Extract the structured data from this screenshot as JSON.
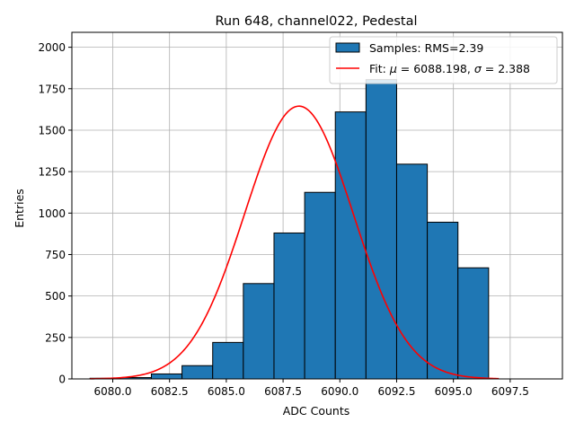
{
  "chart_data": {
    "type": "bar",
    "title": "Run 648, channel022, Pedestal",
    "xlabel": "ADC Counts",
    "ylabel": "Entries",
    "xlim": [
      6078.2,
      6099.8
    ],
    "ylim": [
      0,
      2090
    ],
    "x_ticks": [
      6080.0,
      6082.5,
      6085.0,
      6087.5,
      6090.0,
      6092.5,
      6095.0,
      6097.5
    ],
    "x_tick_labels": [
      "6080.0",
      "6082.5",
      "6085.0",
      "6087.5",
      "6090.0",
      "6092.5",
      "6095.0",
      "6097.5"
    ],
    "y_ticks": [
      0,
      250,
      500,
      750,
      1000,
      1250,
      1500,
      1750,
      2000
    ],
    "y_tick_labels": [
      "0",
      "250",
      "500",
      "750",
      "1000",
      "1250",
      "1500",
      "1750",
      "2000"
    ],
    "grid": true,
    "legend_position": "top-right",
    "histogram": {
      "name": "Samples: RMS=2.39",
      "color": "#1f77b4",
      "bin_edges": [
        6079,
        6080.35,
        6081.7,
        6083.05,
        6084.4,
        6085.75,
        6087.1,
        6088.45,
        6089.8,
        6091.15,
        6092.5,
        6093.85,
        6095.2,
        6096.55
      ],
      "bins": [
        {
          "x0": 6079.0,
          "x1": 6080.35,
          "count": 4
        },
        {
          "x0": 6080.35,
          "x1": 6081.7,
          "count": 8
        },
        {
          "x0": 6081.7,
          "x1": 6083.05,
          "count": 30
        },
        {
          "x0": 6083.05,
          "x1": 6084.4,
          "count": 80
        },
        {
          "x0": 6084.4,
          "x1": 6085.75,
          "count": 220
        },
        {
          "x0": 6085.75,
          "x1": 6087.1,
          "count": 575
        },
        {
          "x0": 6087.1,
          "x1": 6088.45,
          "count": 880
        },
        {
          "x0": 6088.45,
          "x1": 6089.8,
          "count": 1125
        },
        {
          "x0": 6089.8,
          "x1": 6091.15,
          "count": 1610
        },
        {
          "x0": 6091.15,
          "x1": 6092.5,
          "count": 1805
        },
        {
          "x0": 6092.5,
          "x1": 6093.85,
          "count": 1295
        },
        {
          "x0": 6093.85,
          "x1": 6095.2,
          "count": 945
        },
        {
          "x0": 6095.2,
          "x1": 6096.55,
          "count": 670
        }
      ]
    },
    "fit": {
      "name_prefix": "Fit: ",
      "mu_symbol": "μ",
      "sigma_symbol": "σ",
      "mu": 6088.198,
      "sigma": 2.388,
      "mu_text": "6088.198",
      "sigma_text": "2.388",
      "amplitude": 1645,
      "x_range": [
        6079.0,
        6097.0
      ],
      "color": "#ff0000"
    }
  }
}
